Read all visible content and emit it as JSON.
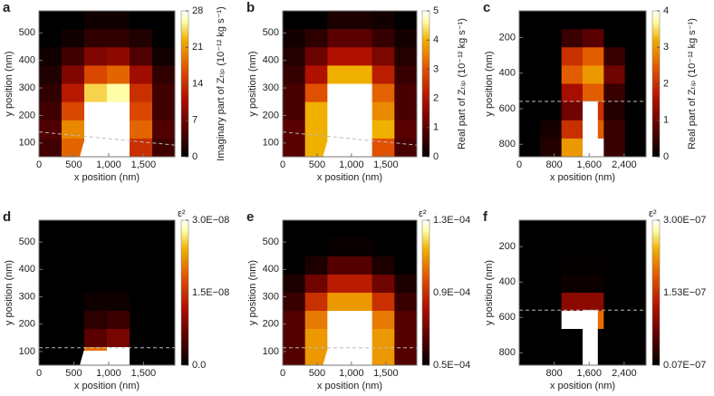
{
  "chart_data": [
    {
      "type": "heatmap",
      "panel_label": "a",
      "xlabel": "x position (nm)",
      "ylabel": "y position (nm)",
      "colorbar_label": "Imaginary part of Zₜᵢₚ (10⁻¹² kg s⁻¹)",
      "xlim": [
        0,
        1950
      ],
      "ylim": [
        50,
        580
      ],
      "xticks": [
        0,
        500,
        {
          "value": 1000,
          "label": "1,000"
        },
        {
          "value": 1500,
          "label": "1,500"
        }
      ],
      "yticks": [
        100,
        200,
        300,
        400,
        500
      ],
      "clim": [
        0,
        28
      ],
      "cticks": [
        0,
        7,
        14,
        21,
        28
      ],
      "z": [
        [
          0,
          0,
          1,
          1,
          0,
          0
        ],
        [
          0,
          1,
          3,
          3,
          2,
          0
        ],
        [
          1,
          4,
          8,
          9,
          5,
          1
        ],
        [
          2,
          8,
          16,
          18,
          10,
          3
        ],
        [
          3,
          12,
          24,
          26,
          14,
          4
        ],
        [
          4,
          16,
          28,
          28,
          16,
          4
        ],
        [
          5,
          20,
          28,
          28,
          18,
          5
        ],
        [
          4,
          18,
          28,
          28,
          14,
          4
        ]
      ]
    },
    {
      "type": "heatmap",
      "panel_label": "b",
      "xlabel": "x position (nm)",
      "ylabel": "y position (nm)",
      "colorbar_label": "Real part of Zₜᵢₚ (10⁻¹² kg s⁻¹)",
      "xlim": [
        0,
        1950
      ],
      "ylim": [
        50,
        580
      ],
      "xticks": [
        0,
        500,
        {
          "value": 1000,
          "label": "1,000"
        },
        {
          "value": 1500,
          "label": "1,500"
        }
      ],
      "yticks": [
        100,
        200,
        300,
        400,
        500
      ],
      "clim": [
        0,
        5
      ],
      "cticks": [
        0,
        1,
        2,
        3,
        4,
        5
      ],
      "z": [
        [
          0,
          0,
          0.3,
          0.3,
          0.2,
          0
        ],
        [
          0.2,
          0.5,
          1,
          1,
          0.6,
          0.2
        ],
        [
          0.4,
          1.2,
          2,
          2,
          1.4,
          0.4
        ],
        [
          0.6,
          2,
          4,
          4,
          2.2,
          0.6
        ],
        [
          0.8,
          3,
          5,
          5,
          3.2,
          0.8
        ],
        [
          0.8,
          4,
          5,
          5,
          3.6,
          0.8
        ],
        [
          1,
          4,
          5,
          5,
          4,
          1
        ],
        [
          1,
          4,
          5,
          5,
          3,
          0.8
        ]
      ]
    },
    {
      "type": "heatmap",
      "panel_label": "c",
      "xlabel": "x position (nm)",
      "ylabel": "y position (nm)",
      "colorbar_label": "Real part of Zₜᵢₚ (10⁻¹² kg s⁻¹)",
      "xlim": [
        0,
        2900
      ],
      "ylim": [
        870,
        50
      ],
      "xticks": [
        0,
        800,
        {
          "value": 1600,
          "label": "1,600"
        },
        {
          "value": 2400,
          "label": "2,400"
        }
      ],
      "yticks": [
        200,
        400,
        600,
        800
      ],
      "clim": [
        0,
        4
      ],
      "cticks": [
        0,
        1,
        2,
        3,
        4
      ],
      "z": [
        [
          0,
          0,
          0,
          0,
          0,
          0
        ],
        [
          0,
          0,
          0.5,
          0.8,
          0,
          0
        ],
        [
          0,
          0,
          2,
          2.5,
          0.5,
          0
        ],
        [
          0,
          0,
          2.5,
          3,
          1,
          0
        ],
        [
          0,
          0,
          1.5,
          2.5,
          0.5,
          0
        ],
        [
          0,
          0,
          1,
          2,
          0.3,
          0
        ],
        [
          0,
          0.2,
          2,
          2.5,
          0.5,
          0
        ],
        [
          0,
          0.3,
          3,
          4,
          0.5,
          0
        ]
      ]
    },
    {
      "type": "heatmap",
      "panel_label": "d",
      "xlabel": "x position (nm)",
      "ylabel": "y position (nm)",
      "colorbar_label": "ε²",
      "xlim": [
        0,
        1950
      ],
      "ylim": [
        50,
        580
      ],
      "xticks": [
        0,
        500,
        {
          "value": 1000,
          "label": "1,000"
        },
        {
          "value": 1500,
          "label": "1,500"
        }
      ],
      "yticks": [
        100,
        200,
        300,
        400,
        500
      ],
      "clim": [
        0,
        3e-08
      ],
      "cticks": [
        {
          "value": 0,
          "label": "0.0"
        },
        {
          "value": 1.5e-08,
          "label": "1.5E−08"
        },
        {
          "value": 3e-08,
          "label": "3.0E−08"
        }
      ],
      "z": [
        [
          0,
          0,
          0,
          0,
          0,
          0
        ],
        [
          0,
          0,
          0,
          0,
          0,
          0
        ],
        [
          0,
          0,
          0,
          0,
          0,
          0
        ],
        [
          0,
          0,
          0,
          0,
          0,
          0
        ],
        [
          0,
          0,
          1e-09,
          1e-09,
          0,
          0
        ],
        [
          0,
          0,
          3e-09,
          4e-09,
          0,
          0
        ],
        [
          0,
          0,
          6e-09,
          8e-09,
          0,
          0
        ],
        [
          0,
          0,
          2e-08,
          3e-08,
          0,
          0
        ]
      ]
    },
    {
      "type": "heatmap",
      "panel_label": "e",
      "xlabel": "x position (nm)",
      "ylabel": "y position (nm)",
      "colorbar_label": "ε²",
      "xlim": [
        0,
        1950
      ],
      "ylim": [
        50,
        580
      ],
      "xticks": [
        0,
        500,
        {
          "value": 1000,
          "label": "1,000"
        },
        {
          "value": 1500,
          "label": "1,500"
        }
      ],
      "yticks": [
        100,
        200,
        300,
        400,
        500
      ],
      "clim": [
        5e-05,
        0.00013
      ],
      "cticks": [
        {
          "value": 5e-05,
          "label": "0.5E−04"
        },
        {
          "value": 9e-05,
          "label": "0.9E−04"
        },
        {
          "value": 0.00013,
          "label": "1.3E−04"
        }
      ],
      "z": [
        [
          5e-05,
          5e-05,
          5e-05,
          5e-05,
          5e-05,
          5e-05
        ],
        [
          5e-05,
          5e-05,
          5.2e-05,
          5.2e-05,
          5e-05,
          5e-05
        ],
        [
          5e-05,
          5.5e-05,
          6.5e-05,
          6.5e-05,
          5.5e-05,
          5e-05
        ],
        [
          5.5e-05,
          7e-05,
          8.5e-05,
          8.5e-05,
          7e-05,
          5.5e-05
        ],
        [
          6e-05,
          9e-05,
          0.00011,
          0.00011,
          9e-05,
          6e-05
        ],
        [
          6.5e-05,
          0.000105,
          0.00013,
          0.00013,
          0.000105,
          6.5e-05
        ],
        [
          6.5e-05,
          0.00011,
          0.00013,
          0.00013,
          0.00011,
          6.5e-05
        ],
        [
          6.5e-05,
          0.00011,
          0.00013,
          0.00013,
          0.00011,
          6.5e-05
        ]
      ]
    },
    {
      "type": "heatmap",
      "panel_label": "f",
      "xlabel": "x position (nm)",
      "ylabel": "y position (nm)",
      "colorbar_label": "ε²",
      "xlim": [
        0,
        2900
      ],
      "ylim": [
        870,
        50
      ],
      "xticks": [
        800,
        {
          "value": 1600,
          "label": "1,600"
        },
        {
          "value": 2400,
          "label": "2,400"
        }
      ],
      "yticks": [
        200,
        400,
        600,
        800
      ],
      "clim": [
        7e-09,
        3e-07
      ],
      "cticks": [
        {
          "value": 7e-09,
          "label": "0.07E−07"
        },
        {
          "value": 1.53e-07,
          "label": "1.53E−07"
        },
        {
          "value": 3e-07,
          "label": "3.00E−07"
        }
      ],
      "z": [
        [
          7e-09,
          7e-09,
          7e-09,
          7e-09,
          7e-09,
          7e-09
        ],
        [
          7e-09,
          7e-09,
          7e-09,
          7e-09,
          7e-09,
          7e-09
        ],
        [
          7e-09,
          7e-09,
          1e-08,
          1e-08,
          7e-09,
          7e-09
        ],
        [
          7e-09,
          7e-09,
          1.5e-08,
          1.5e-08,
          7e-09,
          7e-09
        ],
        [
          7e-09,
          7e-09,
          1e-07,
          1e-07,
          7e-09,
          7e-09
        ],
        [
          7e-09,
          7e-09,
          3e-07,
          2e-07,
          7e-09,
          7e-09
        ],
        [
          7e-09,
          7e-09,
          7e-09,
          7e-09,
          7e-09,
          7e-09
        ],
        [
          7e-09,
          7e-09,
          7e-09,
          7e-09,
          7e-09,
          7e-09
        ]
      ]
    }
  ]
}
